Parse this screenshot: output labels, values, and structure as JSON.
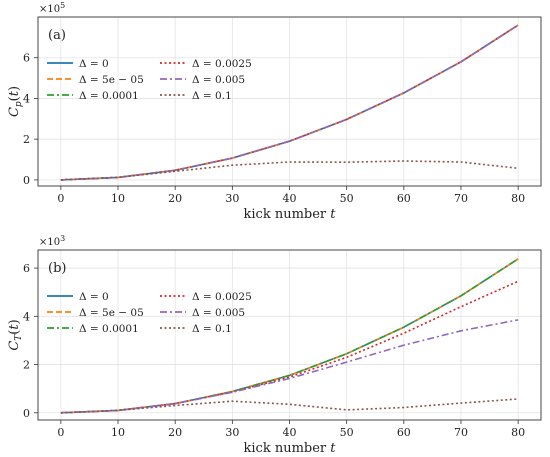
{
  "chart_data": [
    {
      "type": "line",
      "panel_label": "(a)",
      "ylabel": "C_p(t)",
      "xlabel": "kick number t",
      "xlabel_text": "kick number",
      "xlabel_var": "t",
      "scale_label": "×10",
      "scale_exp": "5",
      "xlim": [
        -4,
        84
      ],
      "ylim": [
        -0.3,
        8.0
      ],
      "xticks": [
        0,
        10,
        20,
        30,
        40,
        50,
        60,
        70,
        80
      ],
      "yticks": [
        0,
        2,
        4,
        6
      ],
      "grid": true,
      "legend_position": "upper-left",
      "x": [
        0,
        10,
        20,
        30,
        40,
        50,
        60,
        70,
        80
      ],
      "series": [
        {
          "name": "Δ = 0",
          "color": "#1f77b4",
          "dash": "solid",
          "values": [
            0,
            0.12,
            0.47,
            1.07,
            1.9,
            2.97,
            4.27,
            5.8,
            7.6
          ]
        },
        {
          "name": "Δ = 5e − 05",
          "color": "#ff7f0e",
          "dash": "dashed",
          "values": [
            0,
            0.12,
            0.47,
            1.07,
            1.9,
            2.97,
            4.27,
            5.8,
            7.6
          ]
        },
        {
          "name": "Δ = 0.0001",
          "color": "#2ca02c",
          "dash": "dashdot",
          "values": [
            0,
            0.12,
            0.47,
            1.07,
            1.9,
            2.97,
            4.27,
            5.8,
            7.6
          ]
        },
        {
          "name": "Δ = 0.0025",
          "color": "#d62728",
          "dash": "dotted",
          "values": [
            0,
            0.12,
            0.47,
            1.07,
            1.9,
            2.97,
            4.27,
            5.8,
            7.6
          ]
        },
        {
          "name": "Δ = 0.005",
          "color": "#9467bd",
          "dash": "dashdot",
          "values": [
            0,
            0.12,
            0.47,
            1.07,
            1.9,
            2.97,
            4.27,
            5.8,
            7.6
          ]
        },
        {
          "name": "Δ = 0.1",
          "color": "#8c564b",
          "dash": "dotted",
          "values": [
            0,
            0.12,
            0.42,
            0.72,
            0.88,
            0.87,
            0.93,
            0.88,
            0.57
          ]
        }
      ]
    },
    {
      "type": "line",
      "panel_label": "(b)",
      "ylabel": "C_T(t)",
      "xlabel": "kick number t",
      "xlabel_text": "kick number",
      "xlabel_var": "t",
      "scale_label": "×10",
      "scale_exp": "3",
      "xlim": [
        -4,
        84
      ],
      "ylim": [
        -0.3,
        6.75
      ],
      "xticks": [
        0,
        10,
        20,
        30,
        40,
        50,
        60,
        70,
        80
      ],
      "yticks": [
        0,
        2,
        4,
        6
      ],
      "grid": true,
      "legend_position": "upper-left",
      "x": [
        0,
        10,
        20,
        30,
        40,
        50,
        60,
        70,
        80
      ],
      "series": [
        {
          "name": "Δ = 0",
          "color": "#1f77b4",
          "dash": "solid",
          "values": [
            0,
            0.1,
            0.38,
            0.88,
            1.55,
            2.45,
            3.55,
            4.85,
            6.38
          ]
        },
        {
          "name": "Δ = 5e − 05",
          "color": "#ff7f0e",
          "dash": "dashed",
          "values": [
            0,
            0.1,
            0.38,
            0.88,
            1.55,
            2.45,
            3.55,
            4.85,
            6.38
          ]
        },
        {
          "name": "Δ = 0.0001",
          "color": "#2ca02c",
          "dash": "dashdot",
          "values": [
            0,
            0.1,
            0.38,
            0.88,
            1.55,
            2.45,
            3.55,
            4.85,
            6.38
          ]
        },
        {
          "name": "Δ = 0.0025",
          "color": "#d62728",
          "dash": "dotted",
          "values": [
            0,
            0.1,
            0.38,
            0.86,
            1.48,
            2.3,
            3.3,
            4.4,
            5.45
          ]
        },
        {
          "name": "Δ = 0.005",
          "color": "#9467bd",
          "dash": "dashdot",
          "values": [
            0,
            0.1,
            0.38,
            0.85,
            1.42,
            2.1,
            2.8,
            3.4,
            3.85
          ]
        },
        {
          "name": "Δ = 0.1",
          "color": "#8c564b",
          "dash": "dotted",
          "values": [
            0,
            0.1,
            0.3,
            0.48,
            0.35,
            0.12,
            0.22,
            0.4,
            0.57
          ]
        }
      ]
    }
  ]
}
